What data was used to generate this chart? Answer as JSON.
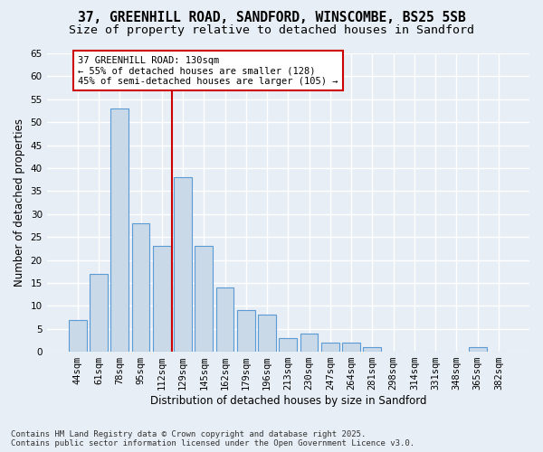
{
  "title_line1": "37, GREENHILL ROAD, SANDFORD, WINSCOMBE, BS25 5SB",
  "title_line2": "Size of property relative to detached houses in Sandford",
  "xlabel": "Distribution of detached houses by size in Sandford",
  "ylabel": "Number of detached properties",
  "bar_labels": [
    "44sqm",
    "61sqm",
    "78sqm",
    "95sqm",
    "112sqm",
    "129sqm",
    "145sqm",
    "162sqm",
    "179sqm",
    "196sqm",
    "213sqm",
    "230sqm",
    "247sqm",
    "264sqm",
    "281sqm",
    "298sqm",
    "314sqm",
    "331sqm",
    "348sqm",
    "365sqm",
    "382sqm"
  ],
  "bar_values": [
    7,
    17,
    53,
    28,
    23,
    38,
    23,
    14,
    9,
    8,
    3,
    4,
    2,
    2,
    1,
    0,
    0,
    0,
    0,
    1,
    0
  ],
  "bar_color": "#c9d9e8",
  "bar_edge_color": "#5b9bd5",
  "background_color": "#e8eef5",
  "grid_color": "#ffffff",
  "property_line_index": 5,
  "property_line_color": "#cc0000",
  "annotation_text_line1": "37 GREENHILL ROAD: 130sqm",
  "annotation_text_line2": "← 55% of detached houses are smaller (128)",
  "annotation_text_line3": "45% of semi-detached houses are larger (105) →",
  "annotation_box_edge_color": "#cc0000",
  "ylim_max": 65,
  "yticks": [
    0,
    5,
    10,
    15,
    20,
    25,
    30,
    35,
    40,
    45,
    50,
    55,
    60,
    65
  ],
  "footer_line1": "Contains HM Land Registry data © Crown copyright and database right 2025.",
  "footer_line2": "Contains public sector information licensed under the Open Government Licence v3.0.",
  "title_fontsize": 10.5,
  "subtitle_fontsize": 9.5,
  "axis_label_fontsize": 8.5,
  "tick_fontsize": 7.5,
  "annotation_fontsize": 7.5,
  "footer_fontsize": 6.5,
  "ylabel_fontsize": 8.5
}
